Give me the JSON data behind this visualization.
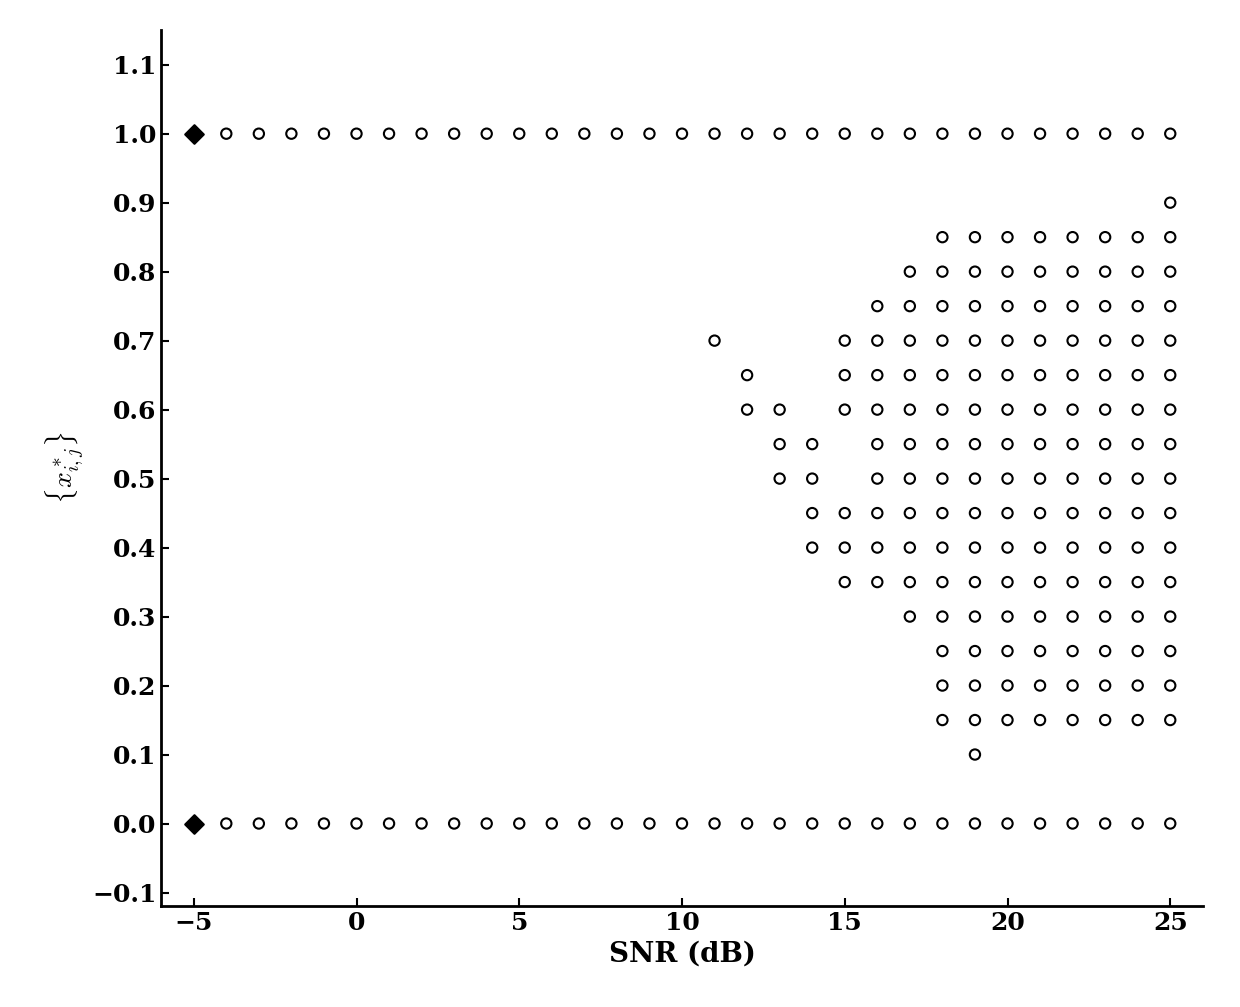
{
  "title": "",
  "xlabel": "SNR (dB)",
  "ylabel": "$\\{x^*_{i,j}\\}$",
  "xlim": [
    -6,
    26
  ],
  "ylim": [
    -0.12,
    1.15
  ],
  "xticks": [
    -5,
    0,
    5,
    10,
    15,
    20,
    25
  ],
  "yticks": [
    -0.1,
    0,
    0.1,
    0.2,
    0.3,
    0.4,
    0.5,
    0.6,
    0.7,
    0.8,
    0.9,
    1.0,
    1.1
  ],
  "background_color": "#ffffff",
  "scatter_color": "#000000",
  "scatter_points": [
    [
      -5,
      1
    ],
    [
      -5,
      0
    ],
    [
      -4,
      1
    ],
    [
      -4,
      0
    ],
    [
      -3,
      1
    ],
    [
      -3,
      0
    ],
    [
      -2,
      1
    ],
    [
      -2,
      0
    ],
    [
      -1,
      1
    ],
    [
      -1,
      0
    ],
    [
      0,
      1
    ],
    [
      0,
      0
    ],
    [
      1,
      1
    ],
    [
      1,
      0
    ],
    [
      2,
      1
    ],
    [
      2,
      0
    ],
    [
      3,
      1
    ],
    [
      3,
      0
    ],
    [
      4,
      1
    ],
    [
      4,
      0
    ],
    [
      5,
      1
    ],
    [
      5,
      0
    ],
    [
      6,
      1
    ],
    [
      6,
      0
    ],
    [
      7,
      1
    ],
    [
      7,
      0
    ],
    [
      8,
      1
    ],
    [
      8,
      0
    ],
    [
      9,
      1
    ],
    [
      9,
      0
    ],
    [
      10,
      1
    ],
    [
      10,
      0
    ],
    [
      11,
      1
    ],
    [
      11,
      0.7
    ],
    [
      11,
      0
    ],
    [
      12,
      1
    ],
    [
      12,
      0.65
    ],
    [
      12,
      0.6
    ],
    [
      12,
      0
    ],
    [
      13,
      1
    ],
    [
      13,
      0.6
    ],
    [
      13,
      0.55
    ],
    [
      13,
      0.5
    ],
    [
      13,
      0
    ],
    [
      14,
      1
    ],
    [
      14,
      0.55
    ],
    [
      14,
      0.5
    ],
    [
      14,
      0.45
    ],
    [
      14,
      0.4
    ],
    [
      14,
      0
    ],
    [
      15,
      1
    ],
    [
      15,
      0.7
    ],
    [
      15,
      0.65
    ],
    [
      15,
      0.6
    ],
    [
      15,
      0.45
    ],
    [
      15,
      0.4
    ],
    [
      15,
      0.35
    ],
    [
      15,
      0
    ],
    [
      16,
      1
    ],
    [
      16,
      0.75
    ],
    [
      16,
      0.7
    ],
    [
      16,
      0.65
    ],
    [
      16,
      0.6
    ],
    [
      16,
      0.55
    ],
    [
      16,
      0.5
    ],
    [
      16,
      0.45
    ],
    [
      16,
      0.4
    ],
    [
      16,
      0.35
    ],
    [
      16,
      0
    ],
    [
      17,
      1
    ],
    [
      17,
      0.8
    ],
    [
      17,
      0.75
    ],
    [
      17,
      0.7
    ],
    [
      17,
      0.65
    ],
    [
      17,
      0.6
    ],
    [
      17,
      0.55
    ],
    [
      17,
      0.5
    ],
    [
      17,
      0.45
    ],
    [
      17,
      0.4
    ],
    [
      17,
      0.35
    ],
    [
      17,
      0.3
    ],
    [
      17,
      0
    ],
    [
      18,
      1
    ],
    [
      18,
      0.85
    ],
    [
      18,
      0.8
    ],
    [
      18,
      0.75
    ],
    [
      18,
      0.7
    ],
    [
      18,
      0.65
    ],
    [
      18,
      0.6
    ],
    [
      18,
      0.55
    ],
    [
      18,
      0.5
    ],
    [
      18,
      0.45
    ],
    [
      18,
      0.4
    ],
    [
      18,
      0.35
    ],
    [
      18,
      0.3
    ],
    [
      18,
      0.25
    ],
    [
      18,
      0.2
    ],
    [
      18,
      0.15
    ],
    [
      18,
      0
    ],
    [
      19,
      1
    ],
    [
      19,
      0.85
    ],
    [
      19,
      0.8
    ],
    [
      19,
      0.75
    ],
    [
      19,
      0.7
    ],
    [
      19,
      0.65
    ],
    [
      19,
      0.6
    ],
    [
      19,
      0.55
    ],
    [
      19,
      0.5
    ],
    [
      19,
      0.45
    ],
    [
      19,
      0.4
    ],
    [
      19,
      0.35
    ],
    [
      19,
      0.3
    ],
    [
      19,
      0.25
    ],
    [
      19,
      0.2
    ],
    [
      19,
      0.15
    ],
    [
      19,
      0.1
    ],
    [
      19,
      0
    ],
    [
      20,
      1
    ],
    [
      20,
      0.85
    ],
    [
      20,
      0.8
    ],
    [
      20,
      0.75
    ],
    [
      20,
      0.7
    ],
    [
      20,
      0.65
    ],
    [
      20,
      0.6
    ],
    [
      20,
      0.55
    ],
    [
      20,
      0.5
    ],
    [
      20,
      0.45
    ],
    [
      20,
      0.4
    ],
    [
      20,
      0.35
    ],
    [
      20,
      0.3
    ],
    [
      20,
      0.25
    ],
    [
      20,
      0.2
    ],
    [
      20,
      0.15
    ],
    [
      20,
      0
    ],
    [
      21,
      1
    ],
    [
      21,
      0.85
    ],
    [
      21,
      0.8
    ],
    [
      21,
      0.75
    ],
    [
      21,
      0.7
    ],
    [
      21,
      0.65
    ],
    [
      21,
      0.6
    ],
    [
      21,
      0.55
    ],
    [
      21,
      0.5
    ],
    [
      21,
      0.45
    ],
    [
      21,
      0.4
    ],
    [
      21,
      0.35
    ],
    [
      21,
      0.3
    ],
    [
      21,
      0.25
    ],
    [
      21,
      0.2
    ],
    [
      21,
      0.15
    ],
    [
      21,
      0
    ],
    [
      22,
      1
    ],
    [
      22,
      0.85
    ],
    [
      22,
      0.8
    ],
    [
      22,
      0.75
    ],
    [
      22,
      0.7
    ],
    [
      22,
      0.65
    ],
    [
      22,
      0.6
    ],
    [
      22,
      0.55
    ],
    [
      22,
      0.5
    ],
    [
      22,
      0.45
    ],
    [
      22,
      0.4
    ],
    [
      22,
      0.35
    ],
    [
      22,
      0.3
    ],
    [
      22,
      0.25
    ],
    [
      22,
      0.2
    ],
    [
      22,
      0.15
    ],
    [
      22,
      0
    ],
    [
      23,
      1
    ],
    [
      23,
      0.85
    ],
    [
      23,
      0.8
    ],
    [
      23,
      0.75
    ],
    [
      23,
      0.7
    ],
    [
      23,
      0.65
    ],
    [
      23,
      0.6
    ],
    [
      23,
      0.55
    ],
    [
      23,
      0.5
    ],
    [
      23,
      0.45
    ],
    [
      23,
      0.4
    ],
    [
      23,
      0.35
    ],
    [
      23,
      0.3
    ],
    [
      23,
      0.25
    ],
    [
      23,
      0.2
    ],
    [
      23,
      0.15
    ],
    [
      23,
      0
    ],
    [
      24,
      1
    ],
    [
      24,
      0.85
    ],
    [
      24,
      0.8
    ],
    [
      24,
      0.75
    ],
    [
      24,
      0.7
    ],
    [
      24,
      0.65
    ],
    [
      24,
      0.6
    ],
    [
      24,
      0.55
    ],
    [
      24,
      0.5
    ],
    [
      24,
      0.45
    ],
    [
      24,
      0.4
    ],
    [
      24,
      0.35
    ],
    [
      24,
      0.3
    ],
    [
      24,
      0.25
    ],
    [
      24,
      0.2
    ],
    [
      24,
      0.15
    ],
    [
      24,
      0
    ],
    [
      25,
      1
    ],
    [
      25,
      0.9
    ],
    [
      25,
      0.85
    ],
    [
      25,
      0.8
    ],
    [
      25,
      0.75
    ],
    [
      25,
      0.7
    ],
    [
      25,
      0.65
    ],
    [
      25,
      0.6
    ],
    [
      25,
      0.55
    ],
    [
      25,
      0.5
    ],
    [
      25,
      0.45
    ],
    [
      25,
      0.4
    ],
    [
      25,
      0.35
    ],
    [
      25,
      0.3
    ],
    [
      25,
      0.25
    ],
    [
      25,
      0.2
    ],
    [
      25,
      0.15
    ],
    [
      25,
      0
    ]
  ],
  "filled_points": [
    [
      -5,
      1
    ],
    [
      -5,
      0
    ]
  ],
  "marker_size": 55,
  "marker_linewidth": 1.5,
  "diamond_size": 90,
  "fontsize_label": 20,
  "fontsize_tick": 18
}
